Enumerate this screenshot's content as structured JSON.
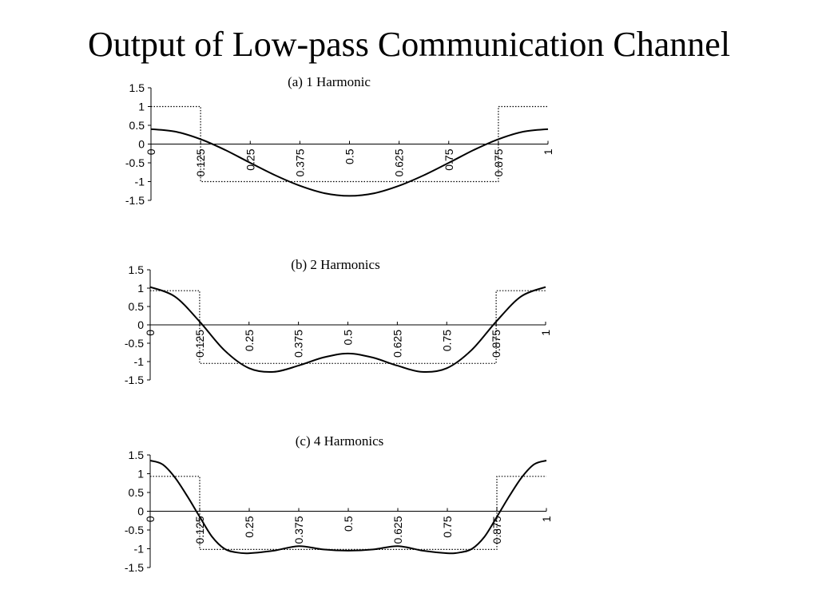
{
  "title": "Output of Low-pass Communication Channel",
  "colors": {
    "signal": "#000000",
    "square_wave": "#000000",
    "axis": "#000000",
    "background": "#ffffff"
  },
  "chart_data": [
    {
      "type": "line",
      "title": "(a) 1 Harmonic",
      "xlabel": "",
      "ylabel": "",
      "xlim": [
        0,
        1
      ],
      "ylim": [
        -1.5,
        1.5
      ],
      "x_ticks": [
        "0",
        "0.125",
        "0.25",
        "0.375",
        "0.5",
        "0.625",
        "0.75",
        "0.875",
        "1"
      ],
      "y_ticks": [
        "1.5",
        "1",
        "0.5",
        "0",
        "-0.5",
        "-1",
        "-1.5"
      ],
      "grid": false,
      "legend": "none",
      "series": [
        {
          "style": "solid",
          "x": [
            0,
            0.0625,
            0.125,
            0.1875,
            0.25,
            0.3125,
            0.375,
            0.4375,
            0.5,
            0.5625,
            0.625,
            0.6875,
            0.75,
            0.8125,
            0.875,
            0.9375,
            1
          ],
          "y": [
            0.4,
            0.33,
            0.13,
            -0.16,
            -0.5,
            -0.83,
            -1.11,
            -1.31,
            -1.38,
            -1.31,
            -1.11,
            -0.83,
            -0.5,
            -0.16,
            0.13,
            0.33,
            0.4
          ]
        },
        {
          "style": "dotted",
          "x": [
            0,
            0.125,
            0.125,
            0.875,
            0.875,
            1
          ],
          "y": [
            1,
            1,
            -1,
            -1,
            1,
            1
          ]
        }
      ]
    },
    {
      "type": "line",
      "title": "(b) 2 Harmonics",
      "xlabel": "",
      "ylabel": "",
      "xlim": [
        0,
        1
      ],
      "ylim": [
        -1.5,
        1.5
      ],
      "x_ticks": [
        "0",
        "0.125",
        "0.25",
        "0.375",
        "0.5",
        "0.625",
        "0.75",
        "0.875",
        "1"
      ],
      "y_ticks": [
        "1.5",
        "1",
        "0.5",
        "0",
        "-0.5",
        "-1",
        "-1.5"
      ],
      "grid": false,
      "legend": "none",
      "series": [
        {
          "style": "solid",
          "x": [
            0,
            0.0625,
            0.125,
            0.1875,
            0.25,
            0.3125,
            0.375,
            0.4375,
            0.5,
            0.5625,
            0.625,
            0.6875,
            0.75,
            0.8125,
            0.875,
            0.9375,
            1
          ],
          "y": [
            1.03,
            0.77,
            0.09,
            -0.69,
            -1.18,
            -1.28,
            -1.11,
            -0.89,
            -0.78,
            -0.89,
            -1.11,
            -1.28,
            -1.18,
            -0.69,
            0.09,
            0.77,
            1.03
          ]
        },
        {
          "style": "dotted",
          "x": [
            0,
            0.125,
            0.125,
            0.875,
            0.875,
            1
          ],
          "y": [
            0.93,
            0.93,
            -1.05,
            -1.05,
            0.93,
            0.93
          ]
        }
      ]
    },
    {
      "type": "line",
      "title": "(c) 4 Harmonics",
      "xlabel": "",
      "ylabel": "",
      "xlim": [
        0,
        1
      ],
      "ylim": [
        -1.5,
        1.5
      ],
      "x_ticks": [
        "0",
        "0.125",
        "0.25",
        "0.375",
        "0.5",
        "0.625",
        "0.75",
        "0.875",
        "1"
      ],
      "y_ticks": [
        "1.5",
        "1",
        "0.5",
        "0",
        "-0.5",
        "-1",
        "-1.5"
      ],
      "grid": false,
      "legend": "none",
      "series": [
        {
          "style": "solid",
          "x": [
            0,
            0.03125,
            0.0625,
            0.09375,
            0.125,
            0.15625,
            0.1875,
            0.21875,
            0.25,
            0.3125,
            0.375,
            0.4375,
            0.5,
            0.5625,
            0.625,
            0.6875,
            0.75,
            0.78125,
            0.8125,
            0.84375,
            0.875,
            0.90625,
            0.9375,
            0.96875,
            1
          ],
          "y": [
            1.35,
            1.25,
            0.9,
            0.4,
            -0.15,
            -0.68,
            -1.0,
            -1.1,
            -1.12,
            -1.05,
            -0.93,
            -1.02,
            -1.05,
            -1.02,
            -0.93,
            -1.05,
            -1.12,
            -1.1,
            -1.0,
            -0.68,
            -0.15,
            0.4,
            0.9,
            1.25,
            1.35
          ]
        },
        {
          "style": "dotted",
          "x": [
            0,
            0.125,
            0.125,
            0.875,
            0.875,
            1
          ],
          "y": [
            0.93,
            0.93,
            -1.02,
            -1.02,
            0.93,
            0.93
          ]
        }
      ]
    }
  ]
}
